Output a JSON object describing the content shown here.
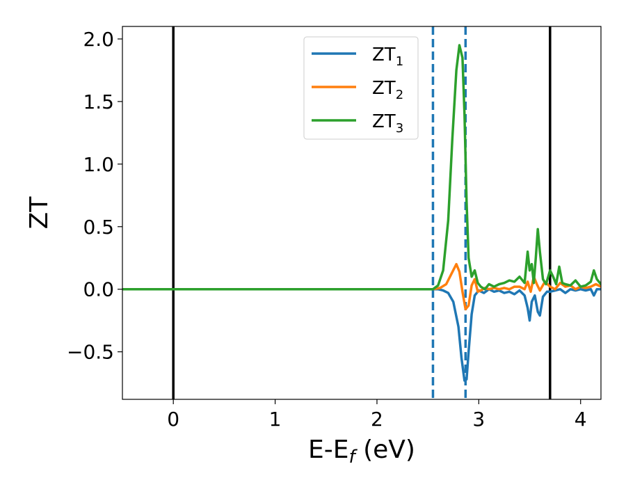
{
  "chart_data": {
    "type": "line",
    "title": "",
    "xlabel": "E-E",
    "xlabel_sub": "f",
    "xlabel_unit": " (eV)",
    "ylabel": "ZT",
    "xlim": [
      -0.5,
      4.2
    ],
    "ylim": [
      -0.88,
      2.1
    ],
    "xticks": [
      0,
      1,
      2,
      3,
      4
    ],
    "xtick_labels": [
      "0",
      "1",
      "2",
      "3",
      "4"
    ],
    "yticks": [
      -0.5,
      0.0,
      0.5,
      1.0,
      1.5,
      2.0
    ],
    "ytick_labels": [
      "−0.5",
      "0.0",
      "0.5",
      "1.0",
      "1.5",
      "2.0"
    ],
    "grid": false,
    "legend_position": "upper center",
    "vlines": [
      {
        "x": 0.0,
        "style": "solid",
        "color": "#000000"
      },
      {
        "x": 3.7,
        "style": "solid",
        "color": "#000000"
      },
      {
        "x": 2.55,
        "style": "dashed",
        "color": "#1f77b4"
      },
      {
        "x": 2.87,
        "style": "dashed",
        "color": "#1f77b4"
      }
    ],
    "series": [
      {
        "name": "ZT",
        "sub": "1",
        "color": "#1f77b4",
        "x": [
          -0.5,
          2.55,
          2.6,
          2.65,
          2.7,
          2.75,
          2.8,
          2.83,
          2.86,
          2.88,
          2.9,
          2.93,
          2.96,
          3.0,
          3.05,
          3.1,
          3.15,
          3.2,
          3.25,
          3.3,
          3.35,
          3.4,
          3.45,
          3.48,
          3.5,
          3.52,
          3.55,
          3.58,
          3.6,
          3.63,
          3.67,
          3.7,
          3.75,
          3.8,
          3.85,
          3.9,
          3.95,
          4.0,
          4.05,
          4.1,
          4.13,
          4.16,
          4.2
        ],
        "y": [
          0.0,
          0.0,
          0.0,
          -0.01,
          -0.03,
          -0.1,
          -0.3,
          -0.55,
          -0.73,
          -0.72,
          -0.5,
          -0.2,
          -0.05,
          -0.01,
          -0.03,
          0.0,
          -0.02,
          -0.01,
          -0.03,
          -0.02,
          -0.04,
          -0.01,
          -0.05,
          -0.15,
          -0.25,
          -0.1,
          -0.05,
          -0.18,
          -0.21,
          -0.06,
          -0.02,
          -0.02,
          -0.01,
          0.0,
          -0.03,
          0.0,
          -0.01,
          0.0,
          -0.01,
          0.0,
          -0.05,
          0.0,
          0.0
        ]
      },
      {
        "name": "ZT",
        "sub": "2",
        "color": "#ff7f0e",
        "x": [
          -0.5,
          2.55,
          2.62,
          2.68,
          2.73,
          2.78,
          2.81,
          2.84,
          2.87,
          2.9,
          2.93,
          2.96,
          2.99,
          3.02,
          3.06,
          3.1,
          3.15,
          3.2,
          3.25,
          3.3,
          3.35,
          3.4,
          3.45,
          3.48,
          3.51,
          3.54,
          3.57,
          3.6,
          3.65,
          3.7,
          3.75,
          3.8,
          3.85,
          3.9,
          3.95,
          4.0,
          4.05,
          4.1,
          4.15,
          4.2
        ],
        "y": [
          0.0,
          0.0,
          0.01,
          0.04,
          0.12,
          0.2,
          0.14,
          -0.02,
          -0.16,
          -0.13,
          0.03,
          0.08,
          -0.02,
          -0.01,
          0.01,
          0.0,
          0.01,
          0.0,
          0.01,
          0.0,
          0.02,
          0.02,
          0.0,
          0.06,
          -0.02,
          0.1,
          0.04,
          -0.01,
          0.06,
          0.02,
          0.0,
          0.05,
          0.02,
          0.03,
          0.0,
          0.02,
          0.01,
          0.02,
          0.04,
          0.02
        ]
      },
      {
        "name": "ZT",
        "sub": "3",
        "color": "#2ca02c",
        "x": [
          -0.5,
          2.55,
          2.6,
          2.65,
          2.7,
          2.74,
          2.78,
          2.81,
          2.84,
          2.86,
          2.88,
          2.9,
          2.93,
          2.96,
          2.99,
          3.02,
          3.06,
          3.1,
          3.15,
          3.2,
          3.25,
          3.3,
          3.35,
          3.4,
          3.45,
          3.48,
          3.5,
          3.52,
          3.54,
          3.56,
          3.58,
          3.6,
          3.63,
          3.66,
          3.7,
          3.73,
          3.76,
          3.79,
          3.82,
          3.85,
          3.9,
          3.95,
          4.0,
          4.05,
          4.1,
          4.13,
          4.16,
          4.2
        ],
        "y": [
          0.0,
          0.0,
          0.03,
          0.15,
          0.55,
          1.2,
          1.75,
          1.95,
          1.85,
          1.4,
          0.7,
          0.25,
          0.1,
          0.15,
          0.05,
          0.02,
          0.0,
          0.04,
          0.02,
          0.04,
          0.05,
          0.07,
          0.06,
          0.1,
          0.05,
          0.3,
          0.15,
          0.2,
          0.05,
          0.25,
          0.48,
          0.3,
          0.08,
          0.04,
          0.15,
          0.1,
          0.04,
          0.18,
          0.05,
          0.04,
          0.03,
          0.07,
          0.02,
          0.03,
          0.06,
          0.15,
          0.08,
          0.04
        ]
      }
    ]
  }
}
